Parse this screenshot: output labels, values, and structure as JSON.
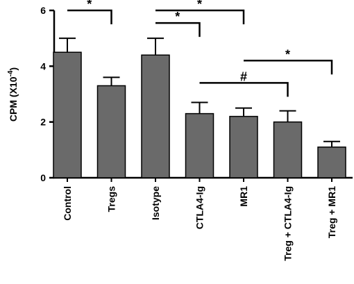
{
  "chart_data": {
    "type": "bar",
    "title": "",
    "xlabel": "",
    "ylabel": "CPM (X10",
    "ylabel_exponent": "-4",
    "ylabel_close": ")",
    "ylim": [
      0,
      6
    ],
    "yticks": [
      0,
      2,
      4,
      6
    ],
    "categories": [
      "Control",
      "Tregs",
      "Isotype",
      "CTLA4-Ig",
      "MR1",
      "Treg + CTLA4-Ig",
      "Treg + MR1"
    ],
    "values": [
      4.5,
      3.3,
      4.4,
      2.3,
      2.2,
      2.0,
      1.1
    ],
    "errors": [
      0.5,
      0.3,
      0.6,
      0.4,
      0.3,
      0.4,
      0.2
    ],
    "bar_color": "#6a6a6a",
    "significance": [
      {
        "from": 0,
        "to": 1,
        "label": "*",
        "y": 6.0
      },
      {
        "from": 2,
        "to": 3,
        "label": "*",
        "y": 5.55
      },
      {
        "from": 2,
        "to": 4,
        "label": "*",
        "y": 6.0
      },
      {
        "from": 4,
        "to": 6,
        "label": "*",
        "y": 4.2
      },
      {
        "from": 3,
        "to": 5,
        "label": "#",
        "y": 3.4
      }
    ]
  }
}
